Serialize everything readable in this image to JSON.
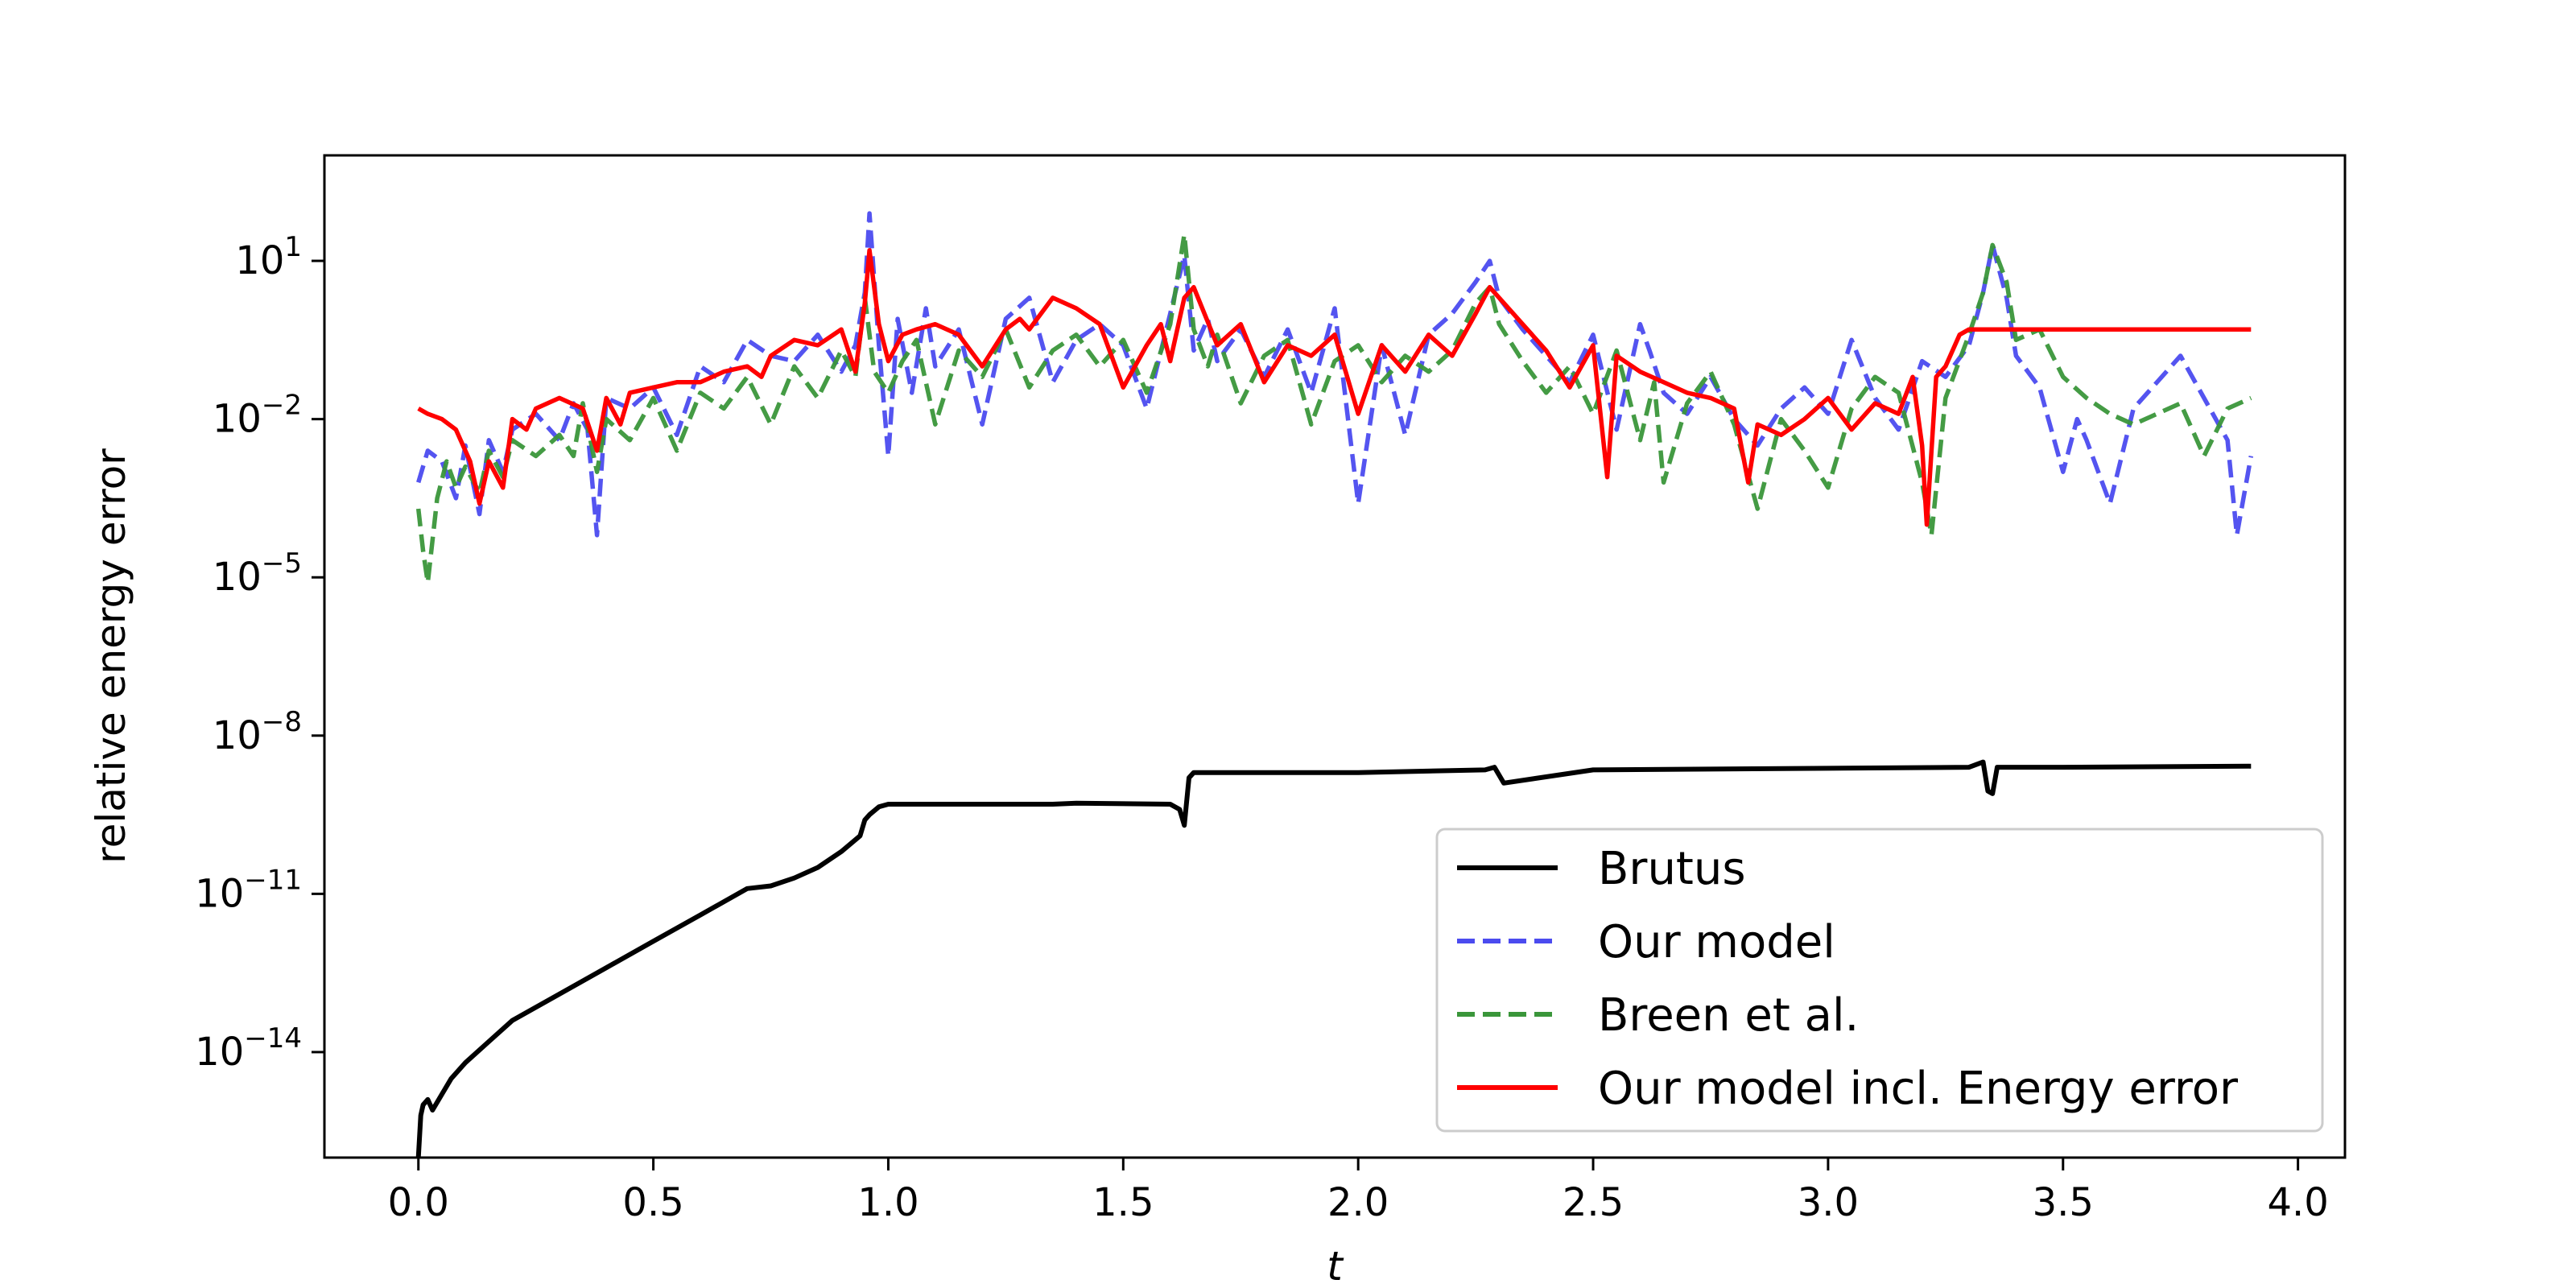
{
  "chart_data": {
    "type": "line",
    "title": "",
    "xlabel": "t",
    "ylabel": "relative energy error",
    "xlim": [
      -0.2,
      4.1
    ],
    "ylim_log10": [
      -16.0,
      3.0
    ],
    "y_scale": "log",
    "grid": false,
    "legend_position": "lower-right",
    "x_ticks": [
      {
        "value": 0.0,
        "label": "0.0"
      },
      {
        "value": 0.5,
        "label": "0.5"
      },
      {
        "value": 1.0,
        "label": "1.0"
      },
      {
        "value": 1.5,
        "label": "1.5"
      },
      {
        "value": 2.0,
        "label": "2.0"
      },
      {
        "value": 2.5,
        "label": "2.5"
      },
      {
        "value": 3.0,
        "label": "3.0"
      },
      {
        "value": 3.5,
        "label": "3.5"
      },
      {
        "value": 4.0,
        "label": "4.0"
      }
    ],
    "y_ticks": [
      {
        "log10": 1,
        "base": "10",
        "exp": "1"
      },
      {
        "log10": -2,
        "base": "10",
        "exp": "−2"
      },
      {
        "log10": -5,
        "base": "10",
        "exp": "−5"
      },
      {
        "log10": -8,
        "base": "10",
        "exp": "−8"
      },
      {
        "log10": -11,
        "base": "10",
        "exp": "−11"
      },
      {
        "log10": -14,
        "base": "10",
        "exp": "−14"
      }
    ],
    "series": [
      {
        "name": "Brutus",
        "color": "#000000",
        "dash": "solid",
        "x": [
          0.0,
          0.005,
          0.01,
          0.02,
          0.03,
          0.05,
          0.07,
          0.1,
          0.15,
          0.2,
          0.3,
          0.4,
          0.5,
          0.6,
          0.7,
          0.75,
          0.8,
          0.85,
          0.9,
          0.94,
          0.95,
          0.96,
          0.98,
          1.0,
          1.2,
          1.35,
          1.4,
          1.6,
          1.62,
          1.63,
          1.64,
          1.65,
          1.7,
          2.0,
          2.27,
          2.29,
          2.31,
          2.5,
          3.0,
          3.3,
          3.33,
          3.34,
          3.35,
          3.36,
          3.5,
          3.9
        ],
        "y_log10": [
          -16.0,
          -15.2,
          -15.0,
          -14.9,
          -15.1,
          -14.8,
          -14.5,
          -14.2,
          -13.8,
          -13.4,
          -12.9,
          -12.4,
          -11.9,
          -11.4,
          -10.9,
          -10.85,
          -10.7,
          -10.5,
          -10.2,
          -9.9,
          -9.6,
          -9.5,
          -9.35,
          -9.3,
          -9.3,
          -9.3,
          -9.28,
          -9.3,
          -9.4,
          -9.7,
          -8.8,
          -8.7,
          -8.7,
          -8.7,
          -8.65,
          -8.6,
          -8.9,
          -8.65,
          -8.62,
          -8.6,
          -8.5,
          -9.05,
          -9.1,
          -8.6,
          -8.6,
          -8.58
        ]
      },
      {
        "name": "Our model",
        "color": "#4b4bef",
        "dash": "dashed",
        "x": [
          0.0,
          0.02,
          0.05,
          0.08,
          0.1,
          0.13,
          0.15,
          0.18,
          0.2,
          0.25,
          0.3,
          0.33,
          0.36,
          0.38,
          0.4,
          0.45,
          0.5,
          0.55,
          0.6,
          0.65,
          0.7,
          0.75,
          0.8,
          0.85,
          0.9,
          0.93,
          0.95,
          0.96,
          0.98,
          1.0,
          1.02,
          1.05,
          1.08,
          1.1,
          1.15,
          1.2,
          1.25,
          1.3,
          1.35,
          1.4,
          1.45,
          1.5,
          1.55,
          1.6,
          1.63,
          1.65,
          1.68,
          1.7,
          1.75,
          1.8,
          1.85,
          1.9,
          1.95,
          2.0,
          2.05,
          2.1,
          2.15,
          2.2,
          2.25,
          2.28,
          2.3,
          2.35,
          2.4,
          2.45,
          2.5,
          2.55,
          2.6,
          2.62,
          2.65,
          2.7,
          2.75,
          2.8,
          2.85,
          2.9,
          2.95,
          3.0,
          3.05,
          3.1,
          3.15,
          3.2,
          3.25,
          3.3,
          3.33,
          3.35,
          3.38,
          3.4,
          3.45,
          3.5,
          3.53,
          3.55,
          3.6,
          3.65,
          3.7,
          3.75,
          3.8,
          3.85,
          3.87,
          3.9
        ],
        "y_log10": [
          -3.2,
          -2.6,
          -2.8,
          -3.5,
          -2.5,
          -3.8,
          -2.4,
          -3.0,
          -2.2,
          -1.9,
          -2.4,
          -1.7,
          -2.2,
          -4.2,
          -1.6,
          -1.8,
          -1.4,
          -2.3,
          -1.0,
          -1.3,
          -0.5,
          -0.8,
          -0.9,
          -0.4,
          -1.1,
          -0.6,
          0.4,
          1.9,
          -0.6,
          -2.7,
          -0.1,
          -1.5,
          0.1,
          -1.0,
          -0.3,
          -2.1,
          -0.1,
          0.3,
          -1.3,
          -0.5,
          -0.2,
          -0.6,
          -1.8,
          0.0,
          1.1,
          -0.7,
          -0.1,
          -0.9,
          -0.3,
          -1.2,
          -0.3,
          -1.5,
          0.1,
          -3.6,
          -0.6,
          -2.3,
          -0.4,
          0.0,
          0.6,
          1.0,
          0.3,
          -0.3,
          -0.8,
          -1.3,
          -0.4,
          -2.2,
          -0.2,
          -0.7,
          -1.5,
          -1.9,
          -1.2,
          -2.0,
          -2.5,
          -1.8,
          -1.4,
          -1.9,
          -0.5,
          -1.6,
          -2.2,
          -0.9,
          -1.2,
          -0.6,
          0.4,
          1.3,
          0.3,
          -0.8,
          -1.4,
          -3.0,
          -2.0,
          -2.4,
          -3.6,
          -1.8,
          -1.3,
          -0.8,
          -1.6,
          -2.4,
          -4.2,
          -2.7
        ]
      },
      {
        "name": "Breen et al.",
        "color": "#3a963a",
        "dash": "dashed",
        "x": [
          0.0,
          0.01,
          0.02,
          0.04,
          0.06,
          0.08,
          0.1,
          0.13,
          0.15,
          0.18,
          0.2,
          0.25,
          0.3,
          0.33,
          0.35,
          0.38,
          0.4,
          0.45,
          0.5,
          0.55,
          0.6,
          0.65,
          0.7,
          0.75,
          0.8,
          0.85,
          0.9,
          0.93,
          0.95,
          0.97,
          1.0,
          1.03,
          1.06,
          1.1,
          1.15,
          1.2,
          1.25,
          1.3,
          1.35,
          1.4,
          1.45,
          1.5,
          1.55,
          1.6,
          1.63,
          1.65,
          1.68,
          1.7,
          1.75,
          1.8,
          1.85,
          1.9,
          1.95,
          2.0,
          2.05,
          2.1,
          2.15,
          2.2,
          2.25,
          2.28,
          2.3,
          2.35,
          2.4,
          2.45,
          2.5,
          2.55,
          2.6,
          2.63,
          2.65,
          2.7,
          2.75,
          2.8,
          2.85,
          2.9,
          2.95,
          3.0,
          3.05,
          3.1,
          3.15,
          3.2,
          3.22,
          3.25,
          3.3,
          3.33,
          3.35,
          3.38,
          3.4,
          3.45,
          3.5,
          3.55,
          3.6,
          3.65,
          3.7,
          3.75,
          3.8,
          3.85,
          3.9
        ],
        "y_log10": [
          -3.7,
          -4.5,
          -5.1,
          -3.5,
          -2.8,
          -3.3,
          -2.9,
          -3.4,
          -2.6,
          -3.1,
          -2.4,
          -2.7,
          -2.3,
          -2.7,
          -1.7,
          -3.0,
          -2.0,
          -2.4,
          -1.6,
          -2.6,
          -1.5,
          -1.8,
          -1.2,
          -2.1,
          -1.0,
          -1.6,
          -0.7,
          -1.2,
          0.3,
          -1.1,
          -1.5,
          -0.9,
          -0.5,
          -2.1,
          -0.7,
          -1.2,
          -0.3,
          -1.4,
          -0.7,
          -0.4,
          -1.0,
          -0.5,
          -1.5,
          -0.2,
          1.5,
          -0.3,
          -1.0,
          -0.4,
          -1.7,
          -0.8,
          -0.5,
          -2.1,
          -0.9,
          -0.6,
          -1.3,
          -0.8,
          -1.1,
          -0.7,
          0.2,
          0.5,
          -0.2,
          -0.9,
          -1.5,
          -1.0,
          -1.9,
          -0.7,
          -2.4,
          -1.3,
          -3.2,
          -1.7,
          -1.1,
          -2.1,
          -3.7,
          -2.0,
          -2.6,
          -3.3,
          -1.8,
          -1.2,
          -1.5,
          -3.2,
          -4.2,
          -1.6,
          -0.4,
          0.4,
          1.3,
          0.6,
          -0.5,
          -0.3,
          -1.2,
          -1.6,
          -1.9,
          -2.1,
          -1.9,
          -1.7,
          -2.7,
          -1.8,
          -1.6
        ]
      },
      {
        "name": "Our model incl. Energy error",
        "color": "#ff0000",
        "dash": "solid",
        "x": [
          0.0,
          0.02,
          0.05,
          0.08,
          0.11,
          0.13,
          0.15,
          0.18,
          0.2,
          0.23,
          0.25,
          0.3,
          0.35,
          0.38,
          0.4,
          0.43,
          0.45,
          0.5,
          0.55,
          0.6,
          0.65,
          0.7,
          0.73,
          0.75,
          0.8,
          0.85,
          0.9,
          0.93,
          0.95,
          0.96,
          0.98,
          1.0,
          1.03,
          1.06,
          1.1,
          1.15,
          1.2,
          1.25,
          1.28,
          1.3,
          1.35,
          1.4,
          1.45,
          1.5,
          1.55,
          1.58,
          1.6,
          1.63,
          1.65,
          1.7,
          1.75,
          1.8,
          1.85,
          1.9,
          1.95,
          2.0,
          2.05,
          2.1,
          2.15,
          2.2,
          2.25,
          2.28,
          2.3,
          2.35,
          2.4,
          2.45,
          2.5,
          2.53,
          2.55,
          2.6,
          2.65,
          2.7,
          2.75,
          2.8,
          2.83,
          2.85,
          2.9,
          2.95,
          3.0,
          3.05,
          3.1,
          3.15,
          3.18,
          3.2,
          3.21,
          3.23,
          3.25,
          3.28,
          3.3,
          3.4,
          3.5,
          3.6,
          3.7,
          3.8,
          3.9
        ],
        "y_log10": [
          -1.8,
          -1.9,
          -2.0,
          -2.2,
          -2.8,
          -3.6,
          -2.8,
          -3.3,
          -2.0,
          -2.2,
          -1.8,
          -1.6,
          -1.8,
          -2.6,
          -1.6,
          -2.1,
          -1.5,
          -1.4,
          -1.3,
          -1.3,
          -1.1,
          -1.0,
          -1.2,
          -0.8,
          -0.5,
          -0.6,
          -0.3,
          -1.1,
          0.2,
          1.2,
          -0.2,
          -0.9,
          -0.4,
          -0.3,
          -0.2,
          -0.4,
          -1.0,
          -0.3,
          -0.1,
          -0.3,
          0.3,
          0.1,
          -0.2,
          -1.4,
          -0.6,
          -0.2,
          -0.9,
          0.3,
          0.5,
          -0.6,
          -0.2,
          -1.3,
          -0.6,
          -0.8,
          -0.4,
          -1.9,
          -0.6,
          -1.1,
          -0.4,
          -0.8,
          0.0,
          0.5,
          0.3,
          -0.2,
          -0.7,
          -1.4,
          -0.6,
          -3.1,
          -0.8,
          -1.1,
          -1.3,
          -1.5,
          -1.6,
          -1.8,
          -3.2,
          -2.1,
          -2.3,
          -2.0,
          -1.6,
          -2.2,
          -1.7,
          -1.9,
          -1.2,
          -2.5,
          -4.0,
          -1.2,
          -1.0,
          -0.4,
          -0.3,
          -0.3,
          -0.3,
          -0.3,
          -0.3,
          -0.3,
          -0.3
        ]
      }
    ]
  }
}
